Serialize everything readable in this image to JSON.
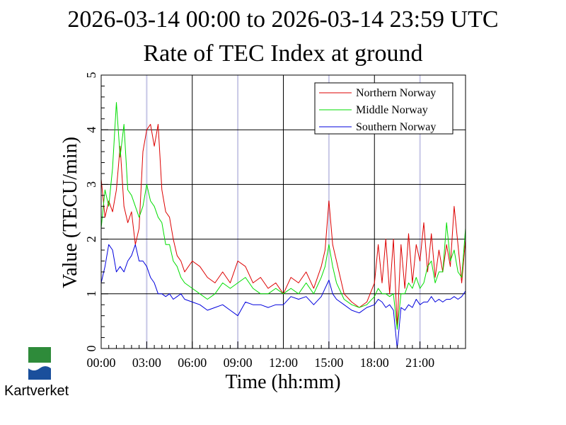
{
  "chart_data": {
    "type": "line",
    "title": "2026-03-14 00:00 to 2026-03-14 23:59 UTC",
    "subtitle": "Rate of TEC Index at ground",
    "xlabel": "Time (hh:mm)",
    "ylabel": "Value (TECU/min)",
    "xlim": [
      0,
      24
    ],
    "ylim": [
      0,
      5
    ],
    "x_ticks": [
      "00:00",
      "03:00",
      "06:00",
      "09:00",
      "12:00",
      "15:00",
      "18:00",
      "21:00"
    ],
    "y_ticks": [
      "0",
      "1",
      "2",
      "3",
      "4",
      "5"
    ],
    "legend_position": "top-right",
    "series": [
      {
        "name": "Northern Norway",
        "color": "#dd0000",
        "x": [
          0,
          0.25,
          0.5,
          0.75,
          1.0,
          1.25,
          1.5,
          1.75,
          2.0,
          2.25,
          2.5,
          2.75,
          3.0,
          3.25,
          3.5,
          3.75,
          4.0,
          4.25,
          4.5,
          4.75,
          5.0,
          5.25,
          5.5,
          6.0,
          6.5,
          7.0,
          7.5,
          8.0,
          8.5,
          9.0,
          9.5,
          10.0,
          10.5,
          11.0,
          11.5,
          12.0,
          12.5,
          13.0,
          13.5,
          14.0,
          14.5,
          14.75,
          15.0,
          15.25,
          15.5,
          16.0,
          16.5,
          17.0,
          17.5,
          18.0,
          18.25,
          18.5,
          18.75,
          19.0,
          19.25,
          19.5,
          19.75,
          20.0,
          20.25,
          20.5,
          20.75,
          21.0,
          21.25,
          21.5,
          21.75,
          22.0,
          22.25,
          22.5,
          22.75,
          23.0,
          23.25,
          23.5,
          23.75,
          24.0
        ],
        "values": [
          3.1,
          2.4,
          2.7,
          2.5,
          2.9,
          3.7,
          2.6,
          2.3,
          2.5,
          1.9,
          2.2,
          3.6,
          4.0,
          4.1,
          3.7,
          4.1,
          2.9,
          2.5,
          2.4,
          2.0,
          1.7,
          1.6,
          1.4,
          1.6,
          1.5,
          1.3,
          1.2,
          1.4,
          1.2,
          1.6,
          1.5,
          1.2,
          1.3,
          1.1,
          1.2,
          1.0,
          1.3,
          1.2,
          1.4,
          1.1,
          1.5,
          1.8,
          2.7,
          1.9,
          1.6,
          1.0,
          0.85,
          0.75,
          0.85,
          1.2,
          1.9,
          1.2,
          2.0,
          1.0,
          2.0,
          0.4,
          1.9,
          1.1,
          2.1,
          1.2,
          1.9,
          1.6,
          2.3,
          1.4,
          2.1,
          1.3,
          1.8,
          1.4,
          1.9,
          1.5,
          2.6,
          1.9,
          1.2,
          2.0
        ]
      },
      {
        "name": "Middle Norway",
        "color": "#00dd00",
        "x": [
          0,
          0.25,
          0.5,
          0.75,
          1.0,
          1.25,
          1.5,
          1.75,
          2.0,
          2.25,
          2.5,
          2.75,
          3.0,
          3.25,
          3.5,
          3.75,
          4.0,
          4.25,
          4.5,
          4.75,
          5.0,
          5.25,
          5.5,
          6.0,
          6.5,
          7.0,
          7.5,
          8.0,
          8.5,
          9.0,
          9.5,
          10.0,
          10.5,
          11.0,
          11.5,
          12.0,
          12.5,
          13.0,
          13.5,
          14.0,
          14.5,
          14.75,
          15.0,
          15.25,
          15.5,
          16.0,
          16.5,
          17.0,
          17.5,
          18.0,
          18.25,
          18.5,
          18.75,
          19.0,
          19.25,
          19.5,
          19.75,
          20.0,
          20.25,
          20.5,
          20.75,
          21.0,
          21.25,
          21.5,
          21.75,
          22.0,
          22.25,
          22.5,
          22.75,
          23.0,
          23.25,
          23.5,
          23.75,
          24.0
        ],
        "values": [
          2.2,
          2.9,
          2.6,
          3.3,
          4.5,
          3.5,
          4.1,
          2.9,
          2.8,
          2.6,
          2.4,
          2.6,
          3.0,
          2.7,
          2.6,
          2.4,
          2.3,
          1.9,
          1.9,
          1.6,
          1.5,
          1.3,
          1.2,
          1.1,
          1.0,
          0.9,
          1.0,
          1.2,
          1.1,
          1.2,
          1.3,
          1.1,
          1.0,
          1.0,
          1.1,
          1.0,
          1.1,
          1.0,
          1.2,
          1.0,
          1.3,
          1.5,
          1.9,
          1.5,
          1.2,
          0.9,
          0.8,
          0.75,
          0.8,
          0.95,
          1.1,
          1.0,
          1.0,
          0.95,
          1.0,
          0.35,
          1.0,
          1.0,
          1.2,
          1.1,
          1.3,
          1.1,
          1.2,
          1.5,
          1.6,
          1.2,
          1.4,
          1.4,
          2.3,
          1.6,
          1.8,
          1.4,
          1.3,
          2.2
        ]
      },
      {
        "name": "Southern Norway",
        "color": "#0000dd",
        "x": [
          0,
          0.25,
          0.5,
          0.75,
          1.0,
          1.25,
          1.5,
          1.75,
          2.0,
          2.25,
          2.5,
          2.75,
          3.0,
          3.25,
          3.5,
          3.75,
          4.0,
          4.25,
          4.5,
          4.75,
          5.0,
          5.25,
          5.5,
          6.0,
          6.5,
          7.0,
          7.5,
          8.0,
          8.5,
          9.0,
          9.5,
          10.0,
          10.5,
          11.0,
          11.5,
          12.0,
          12.5,
          13.0,
          13.5,
          14.0,
          14.5,
          14.75,
          15.0,
          15.25,
          15.5,
          16.0,
          16.5,
          17.0,
          17.5,
          18.0,
          18.25,
          18.5,
          18.75,
          19.0,
          19.25,
          19.5,
          19.75,
          20.0,
          20.25,
          20.5,
          20.75,
          21.0,
          21.25,
          21.5,
          21.75,
          22.0,
          22.25,
          22.5,
          22.75,
          23.0,
          23.25,
          23.5,
          23.75,
          24.0
        ],
        "values": [
          1.2,
          1.5,
          1.9,
          1.8,
          1.4,
          1.5,
          1.4,
          1.6,
          1.7,
          1.9,
          1.6,
          1.6,
          1.5,
          1.3,
          1.2,
          1.0,
          1.0,
          0.95,
          1.0,
          0.9,
          0.95,
          1.0,
          0.9,
          0.85,
          0.8,
          0.7,
          0.75,
          0.8,
          0.7,
          0.6,
          0.85,
          0.8,
          0.8,
          0.75,
          0.8,
          0.8,
          0.95,
          0.9,
          0.95,
          0.8,
          0.95,
          1.1,
          1.25,
          1.0,
          0.9,
          0.8,
          0.7,
          0.65,
          0.75,
          0.8,
          0.9,
          0.85,
          0.75,
          0.8,
          0.7,
          0.0,
          0.75,
          0.7,
          0.8,
          0.75,
          0.9,
          0.8,
          0.85,
          0.85,
          0.95,
          0.85,
          0.9,
          0.85,
          0.9,
          0.9,
          0.95,
          0.9,
          0.95,
          1.05
        ]
      }
    ]
  },
  "logo": {
    "text": "Kartverket",
    "colors": {
      "green": "#2e8b3a",
      "blue": "#1a4f9c"
    }
  }
}
